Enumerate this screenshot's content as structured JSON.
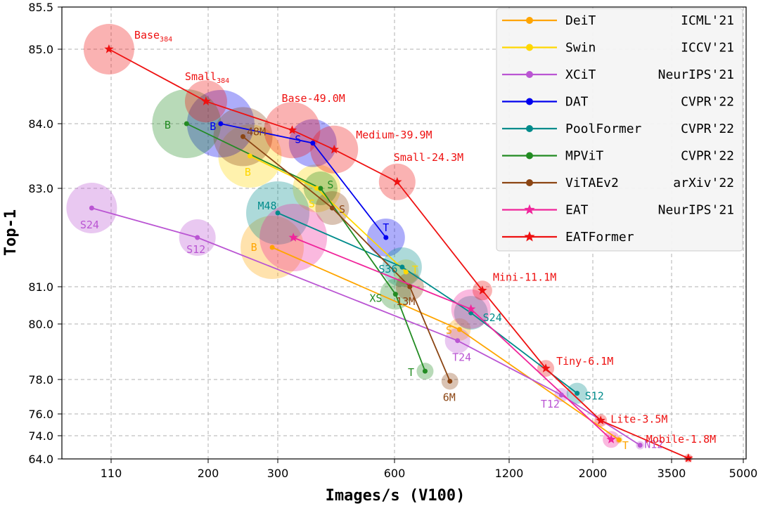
{
  "chart_data": {
    "type": "scatter",
    "xlabel": "Images/s (V100)",
    "ylabel": "Top-1",
    "x_ticks": [
      "110",
      "200",
      "300",
      "600",
      "1200",
      "2000",
      "3500",
      "5000"
    ],
    "y_ticks": [
      "64.0",
      "74.0",
      "76.0",
      "78.0",
      "80.0",
      "81.0",
      "83.0",
      "84.0",
      "85.0",
      "85.5"
    ],
    "grid": true,
    "legend_position": "top-right",
    "series": [
      {
        "name": "DeiT",
        "venue": "ICML'21",
        "color": "#FFA500",
        "marker": "circle",
        "points": [
          {
            "label": "B",
            "x": 292,
            "y": 81.8
          },
          {
            "label": "S",
            "x": 940,
            "y": 79.8
          },
          {
            "label": "T",
            "x": 2500,
            "y": 72.2
          }
        ]
      },
      {
        "name": "Swin",
        "venue": "ICCV'21",
        "color": "#FFD700",
        "marker": "circle",
        "points": [
          {
            "label": "B",
            "x": 260,
            "y": 83.5
          },
          {
            "label": "S",
            "x": 400,
            "y": 83.0
          },
          {
            "label": "T",
            "x": 660,
            "y": 81.3
          }
        ]
      },
      {
        "name": "XCiT",
        "venue": "NeurIPS'21",
        "color": "#BA55D3",
        "marker": "circle",
        "points": [
          {
            "label": "S24",
            "x": 92,
            "y": 82.6
          },
          {
            "label": "S12",
            "x": 190,
            "y": 82.0
          },
          {
            "label": "T24",
            "x": 930,
            "y": 79.4
          },
          {
            "label": "T12",
            "x": 1700,
            "y": 77.1
          },
          {
            "label": "N12",
            "x": 2900,
            "y": 69.9
          }
        ]
      },
      {
        "name": "DAT",
        "venue": "CVPR'22",
        "color": "#0000EE",
        "marker": "circle",
        "points": [
          {
            "label": "B",
            "x": 218,
            "y": 84.0
          },
          {
            "label": "S",
            "x": 390,
            "y": 83.7
          },
          {
            "label": "T",
            "x": 578,
            "y": 82.0
          }
        ]
      },
      {
        "name": "PoolFormer",
        "venue": "CVPR'22",
        "color": "#008B8B",
        "marker": "circle",
        "points": [
          {
            "label": "M48",
            "x": 300,
            "y": 82.5
          },
          {
            "label": "S36",
            "x": 640,
            "y": 81.4
          },
          {
            "label": "S24",
            "x": 1000,
            "y": 80.3
          },
          {
            "label": "S12",
            "x": 1850,
            "y": 77.2
          }
        ]
      },
      {
        "name": "MPViT",
        "venue": "CVPR'22",
        "color": "#228B22",
        "marker": "circle",
        "points": [
          {
            "label": "B",
            "x": 180,
            "y": 84.0
          },
          {
            "label": "S",
            "x": 410,
            "y": 83.0
          },
          {
            "label": "XS",
            "x": 605,
            "y": 80.8
          },
          {
            "label": "T",
            "x": 760,
            "y": 78.3
          }
        ]
      },
      {
        "name": "ViTAEv2",
        "venue": "arXiv'22",
        "color": "#8B4513",
        "marker": "circle",
        "points": [
          {
            "label": "48M",
            "x": 250,
            "y": 83.8
          },
          {
            "label": "S",
            "x": 440,
            "y": 82.6
          },
          {
            "label": "13M",
            "x": 680,
            "y": 81.0
          },
          {
            "label": "6M",
            "x": 890,
            "y": 77.9
          }
        ]
      },
      {
        "name": "EAT",
        "venue": "NeurIPS'21",
        "color": "#F0259B",
        "marker": "star",
        "points": [
          {
            "x": 340,
            "y": 82.0
          },
          {
            "x": 1000,
            "y": 80.4
          },
          {
            "x": 2350,
            "y": 72.4
          }
        ]
      },
      {
        "name": "EATFormer",
        "venue": "",
        "color": "#EE1111",
        "marker": "star",
        "points": [
          {
            "label": "Base",
            "sub": "384",
            "x": 108,
            "y": 85.0
          },
          {
            "label": "Small",
            "sub": "384",
            "x": 198,
            "y": 84.3
          },
          {
            "label": "Base-49.0M",
            "x": 337,
            "y": 83.9
          },
          {
            "label": "Medium-39.9M",
            "x": 445,
            "y": 83.6
          },
          {
            "label": "Small-24.3M",
            "x": 614,
            "y": 83.1
          },
          {
            "label": "Mini-11.1M",
            "x": 1060,
            "y": 80.9
          },
          {
            "label": "Tiny-6.1M",
            "x": 1550,
            "y": 78.4
          },
          {
            "label": "Lite-3.5M",
            "x": 2150,
            "y": 75.4
          },
          {
            "label": "Mobile-1.8M",
            "x": 3850,
            "y": 64.3
          }
        ]
      }
    ]
  }
}
